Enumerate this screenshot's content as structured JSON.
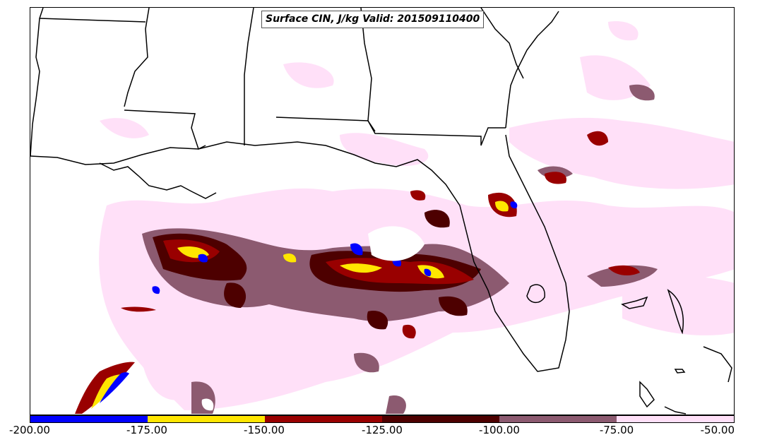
{
  "title": "Surface CIN, J/kg Valid: 201509110400",
  "colorbar": {
    "ticks": [
      "-200.00",
      "-175.00",
      "-150.00",
      "-125.00",
      "-100.00",
      "-75.00",
      "-50.00"
    ],
    "colors": [
      "#0000ff",
      "#ffe600",
      "#990000",
      "#4d0000",
      "#8c5a70",
      "#ffe0f8"
    ]
  },
  "colors": {
    "blue": "#0000ff",
    "yellow": "#ffe600",
    "red": "#990000",
    "darkred": "#4d0000",
    "mauve": "#8c5a70",
    "pink": "#ffe0f8",
    "outline": "#000000"
  }
}
